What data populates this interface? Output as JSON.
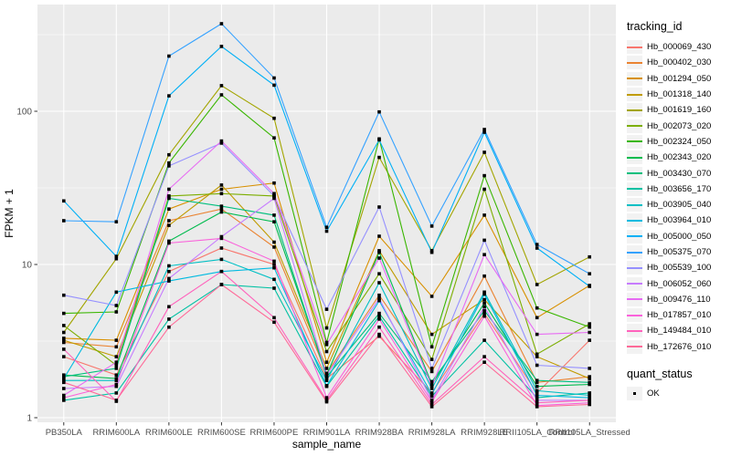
{
  "chart_data": {
    "type": "line",
    "title": "",
    "xlabel": "sample_name",
    "ylabel": "FPKM + 1",
    "y_scale": "log10",
    "ylim": [
      0.93,
      500
    ],
    "y_major_ticks": [
      1,
      10,
      100
    ],
    "y_tick_labels": [
      "1",
      "10",
      "100"
    ],
    "y_minor_breaks": [
      3.1623,
      31.623,
      316.23
    ],
    "grid": "on",
    "legend_position": "right",
    "panel_bg": "#EBEBEB",
    "grid_color": "#FFFFFF",
    "tick_label_color": "#4D4D4D",
    "point_shape": "square",
    "point_color": "#000000",
    "legend_title": "tracking_id",
    "quant_legend": {
      "title": "quant_status",
      "items": [
        {
          "label": "OK"
        }
      ]
    },
    "categories": [
      "PB350LA",
      "RRIM600LA",
      "RRIM600LE",
      "RRIM600SE",
      "RRIM600PE",
      "RRIM901LA",
      "RRIM928BA",
      "RRIM928LA",
      "RRIM928LE",
      "RRII105LA_Control",
      "RRII105LA_Stressed"
    ],
    "series": [
      {
        "name": "Hb_000069_430",
        "color": "#F8766D",
        "values": [
          2.5,
          1.9,
          9.0,
          12.8,
          10.0,
          1.8,
          3.4,
          1.45,
          4.8,
          1.45,
          3.2
        ]
      },
      {
        "name": "Hb_000402_030",
        "color": "#EA8331",
        "values": [
          3.1,
          2.9,
          19.3,
          23,
          13,
          1.95,
          6.3,
          2.0,
          8.4,
          1.7,
          1.85
        ]
      },
      {
        "name": "Hb_001294_050",
        "color": "#D89000",
        "values": [
          3.3,
          3.2,
          23,
          31,
          34,
          2.3,
          15.3,
          6.2,
          21,
          4.5,
          7.3
        ]
      },
      {
        "name": "Hb_001318_140",
        "color": "#C09B00",
        "values": [
          3.2,
          2.5,
          18,
          33,
          14,
          2.1,
          12.3,
          3.5,
          5.9,
          2.5,
          1.8
        ]
      },
      {
        "name": "Hb_001619_160",
        "color": "#A3A500",
        "values": [
          3.6,
          10.9,
          52,
          147,
          90,
          3.85,
          50,
          12.3,
          54,
          7.4,
          11.2
        ]
      },
      {
        "name": "Hb_002073_020",
        "color": "#7CAE00",
        "values": [
          4.0,
          2.2,
          28,
          29,
          28,
          2.7,
          8.7,
          2.4,
          31,
          2.6,
          4.1
        ]
      },
      {
        "name": "Hb_002324_050",
        "color": "#39B600",
        "values": [
          4.8,
          4.9,
          46,
          128,
          67,
          3.1,
          66,
          2.9,
          38,
          5.2,
          3.9
        ]
      },
      {
        "name": "Hb_002343_020",
        "color": "#00BB4E",
        "values": [
          1.9,
          1.8,
          14.2,
          22,
          19,
          1.9,
          12.0,
          1.65,
          5.6,
          1.6,
          1.65
        ]
      },
      {
        "name": "Hb_003430_070",
        "color": "#00BF7D",
        "values": [
          1.85,
          2.1,
          27,
          24,
          21,
          1.85,
          4.8,
          1.72,
          5.0,
          1.75,
          1.7
        ]
      },
      {
        "name": "Hb_003656_170",
        "color": "#00C1A3",
        "values": [
          1.3,
          1.45,
          4.4,
          7.4,
          7.0,
          1.6,
          4.6,
          1.38,
          3.2,
          1.35,
          1.45
        ]
      },
      {
        "name": "Hb_003905_040",
        "color": "#00BFC4",
        "values": [
          1.75,
          1.75,
          9.8,
          10.8,
          8.0,
          1.75,
          7.6,
          1.55,
          6.6,
          1.5,
          1.4
        ]
      },
      {
        "name": "Hb_003964_010",
        "color": "#00BAE0",
        "values": [
          1.8,
          6.6,
          7.8,
          9.0,
          9.5,
          1.62,
          5.8,
          1.42,
          6.4,
          1.4,
          1.35
        ]
      },
      {
        "name": "Hb_005000_050",
        "color": "#00B0F6",
        "values": [
          26,
          11.3,
          126,
          265,
          148,
          16.5,
          65,
          12.0,
          73,
          12.8,
          7.2
        ]
      },
      {
        "name": "Hb_005375_070",
        "color": "#35A2FF",
        "values": [
          19.3,
          19,
          229,
          373,
          165,
          17.5,
          99,
          17.8,
          76,
          13.5,
          8.7
        ]
      },
      {
        "name": "Hb_005539_100",
        "color": "#9590FF",
        "values": [
          6.3,
          5.4,
          44,
          62,
          28,
          5.1,
          23.7,
          2.1,
          14.4,
          2.2,
          2.1
        ]
      },
      {
        "name": "Hb_006052_060",
        "color": "#C77CFF",
        "values": [
          1.55,
          1.6,
          8.1,
          15.2,
          27,
          1.9,
          6.0,
          1.3,
          5.3,
          1.3,
          1.3
        ]
      },
      {
        "name": "Hb_009476_110",
        "color": "#E76BF3",
        "values": [
          1.4,
          2.3,
          31,
          64,
          29,
          3.0,
          11.0,
          1.6,
          11.6,
          3.5,
          3.6
        ]
      },
      {
        "name": "Hb_017857_010",
        "color": "#FA62DB",
        "values": [
          1.35,
          1.65,
          13.8,
          14.8,
          10.5,
          1.35,
          4.4,
          1.27,
          4.6,
          1.2,
          1.25
        ]
      },
      {
        "name": "Hb_149484_010",
        "color": "#FF62BC",
        "values": [
          2.8,
          1.28,
          5.3,
          9.0,
          4.5,
          1.3,
          3.9,
          1.22,
          2.5,
          1.25,
          1.3
        ]
      },
      {
        "name": "Hb_172676_010",
        "color": "#FF6A98",
        "values": [
          1.7,
          1.3,
          3.9,
          7.4,
          4.2,
          1.27,
          3.5,
          1.18,
          2.3,
          1.18,
          1.22
        ]
      }
    ]
  }
}
